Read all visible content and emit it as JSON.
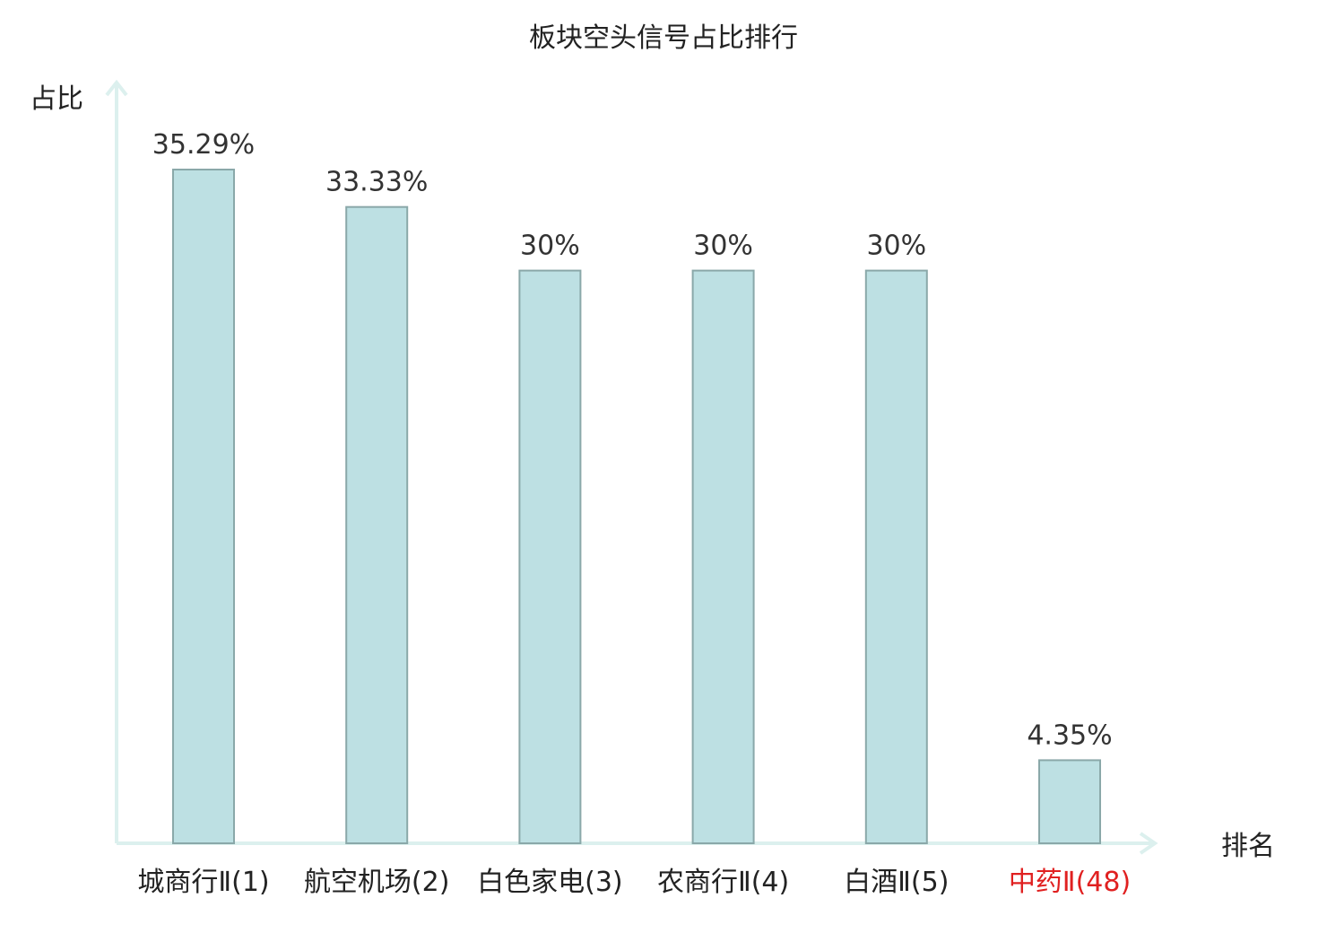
{
  "chart_data": {
    "type": "bar",
    "title": "板块空头信号占比排行",
    "xlabel": "排名",
    "ylabel": "占比",
    "categories": [
      "城商行Ⅱ(1)",
      "航空机场(2)",
      "白色家电(3)",
      "农商行Ⅱ(4)",
      "白酒Ⅱ(5)",
      "中药Ⅱ(48)"
    ],
    "values": [
      35.29,
      33.33,
      30,
      30,
      30,
      4.35
    ],
    "value_labels": [
      "35.29%",
      "33.33%",
      "30%",
      "30%",
      "30%",
      "4.35%"
    ],
    "highlight": [
      false,
      false,
      false,
      false,
      false,
      true
    ],
    "ylim": [
      0,
      40
    ],
    "grid": false,
    "colors": {
      "bar_fill": "#bde0e3",
      "bar_stroke": "#8aa8a9",
      "axis": "#dcf0ee",
      "text": "#222222",
      "value_text": "#333333",
      "highlight_text": "#e02020"
    }
  }
}
